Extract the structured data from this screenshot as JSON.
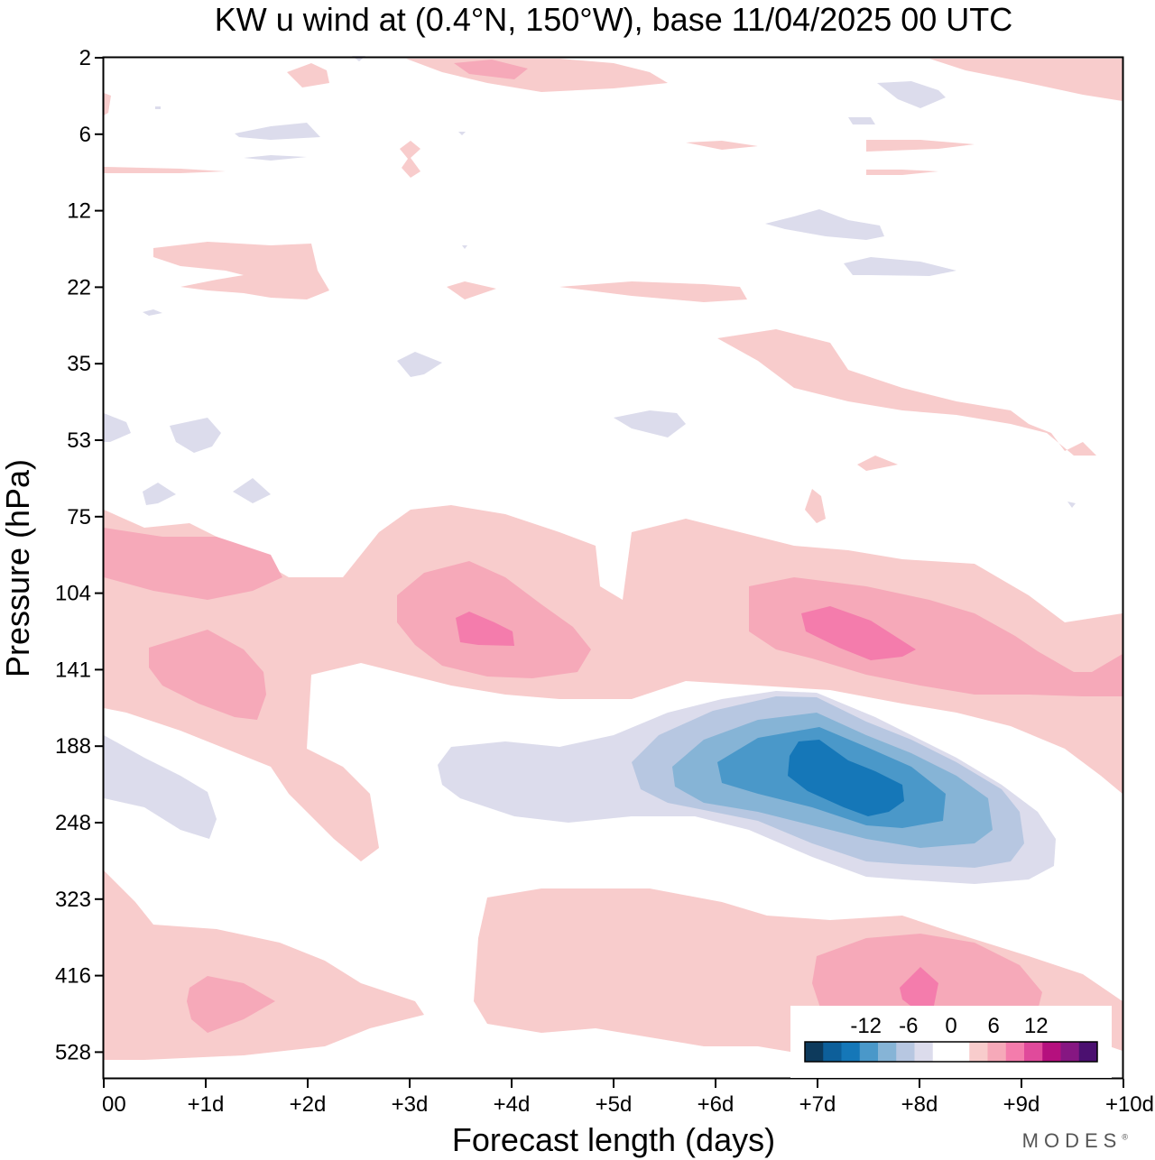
{
  "chart_data": {
    "type": "heatmap",
    "title": "KW u wind at (0.4°N, 150°W),  base 11/04/2025  00 UTC",
    "xlabel": "Forecast length (days)",
    "ylabel": "Pressure (hPa)",
    "x_ticks": [
      "00",
      "+1d",
      "+2d",
      "+3d",
      "+4d",
      "+5d",
      "+6d",
      "+7d",
      "+8d",
      "+9d",
      "+10d"
    ],
    "xlim": [
      0,
      10
    ],
    "y_ticks": [
      "2",
      "6",
      "12",
      "22",
      "35",
      "53",
      "75",
      "104",
      "141",
      "188",
      "248",
      "323",
      "416",
      "528"
    ],
    "colorbar": {
      "tick_labels": [
        "-12",
        "-6",
        "0",
        "6",
        "12"
      ],
      "colors": [
        "#0d3a5c",
        "#0d5f9a",
        "#1577b8",
        "#4a98c9",
        "#86b4d6",
        "#b7c7e1",
        "#dcdcec",
        "#ffffff",
        "#ffffff",
        "#f8cccc",
        "#f6a9b9",
        "#f47cac",
        "#e04a9b",
        "#b5107e",
        "#861782",
        "#4b1070"
      ],
      "location": "bottom-right"
    },
    "features": [
      {
        "kind": "positive",
        "level": 3,
        "peak": 10,
        "x_days": 3.6,
        "pressure_hPa": 120
      },
      {
        "kind": "positive",
        "level": 3,
        "peak": 10,
        "x_days": 7.3,
        "pressure_hPa": 120
      },
      {
        "kind": "positive",
        "level": 3,
        "peak": 10,
        "x_days": 8.0,
        "pressure_hPa": 440
      },
      {
        "kind": "negative",
        "level": 6,
        "peak": -10,
        "x_days": 7.3,
        "pressure_hPa": 220
      },
      {
        "kind": "positive",
        "level": 2,
        "peak": 7,
        "x_days": 0.9,
        "pressure_hPa": 95
      },
      {
        "kind": "positive",
        "level": 2,
        "peak": 7,
        "x_days": 1.2,
        "pressure_hPa": 150
      },
      {
        "kind": "positive",
        "level": 2,
        "peak": 7,
        "x_days": 1.2,
        "pressure_hPa": 460
      }
    ]
  },
  "branding": {
    "text": "MODES",
    "mark": "®"
  }
}
